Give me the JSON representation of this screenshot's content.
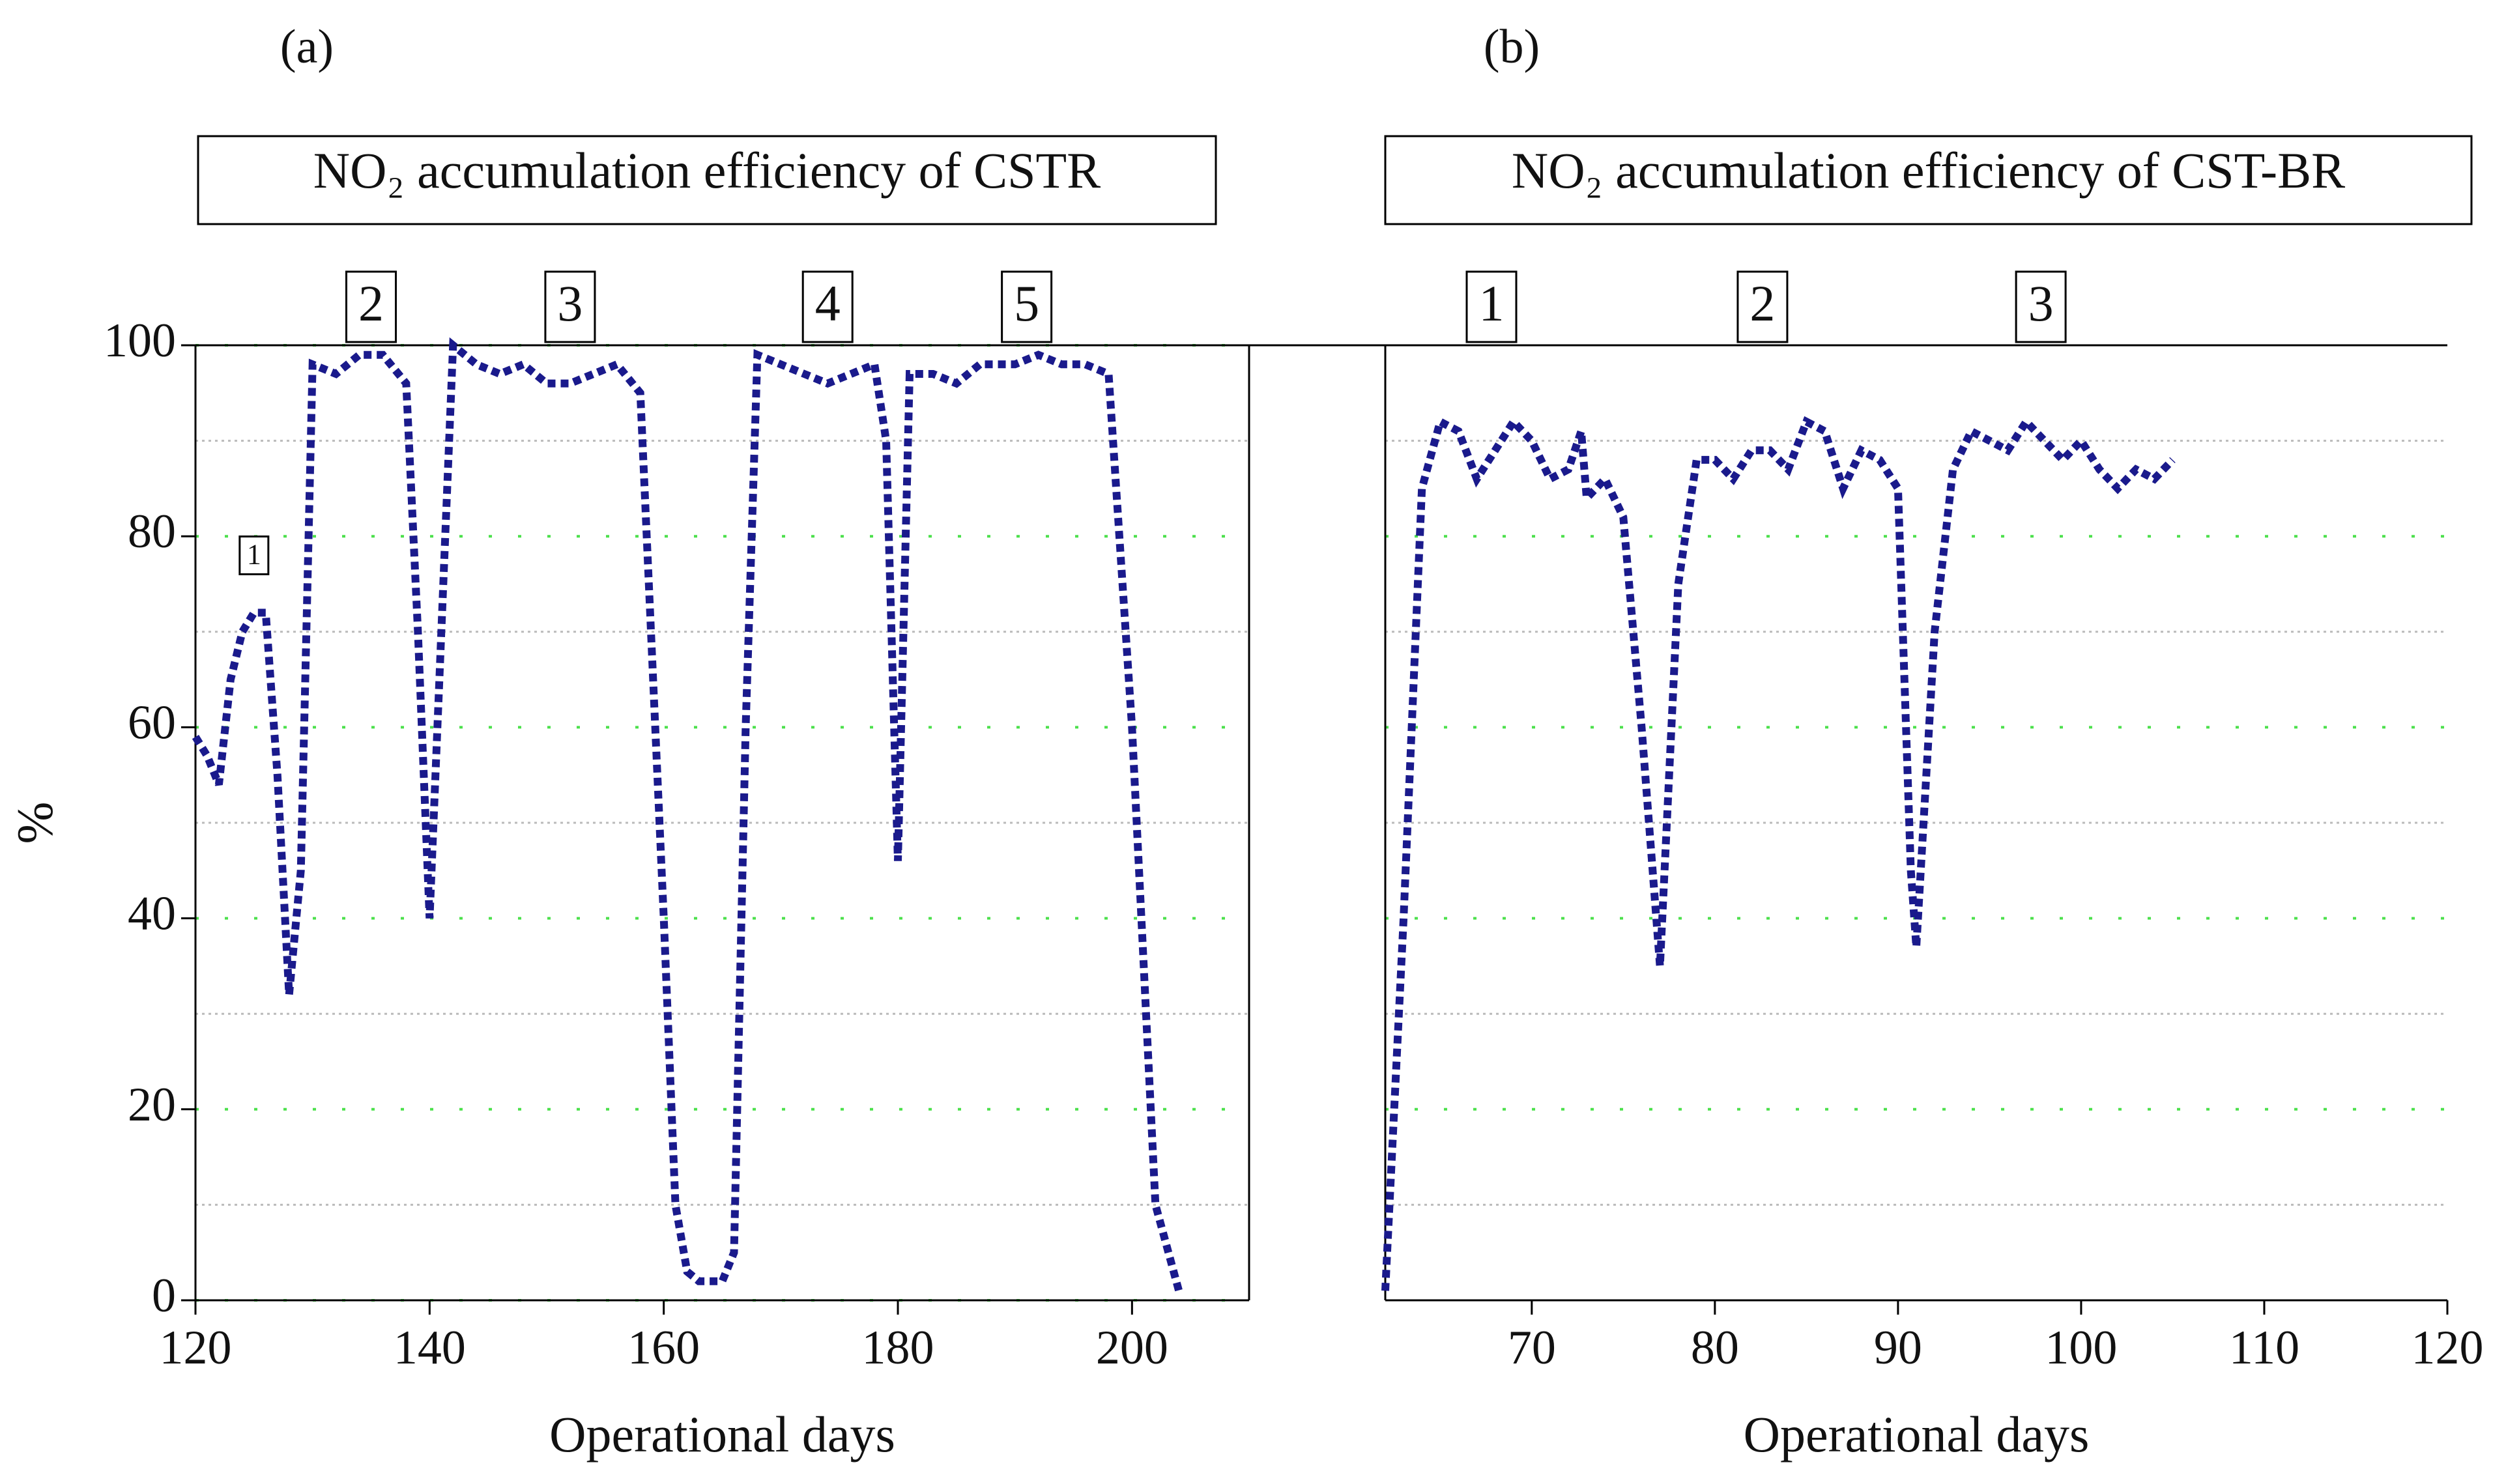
{
  "chart_data": [
    {
      "type": "line",
      "panel": "(a)",
      "title": "NO₂ accumulation efficiency of CSTR",
      "xlabel": "Operational days",
      "ylabel": "%",
      "x": [
        120,
        121,
        122,
        123,
        124,
        125,
        126,
        127,
        128,
        129,
        130,
        132,
        134,
        136,
        138,
        139,
        140,
        141,
        142,
        144,
        146,
        148,
        150,
        152,
        154,
        156,
        158,
        160,
        161,
        162,
        163,
        165,
        166,
        167,
        168,
        170,
        172,
        174,
        176,
        178,
        179,
        180,
        181,
        183,
        185,
        187,
        190,
        192,
        194,
        196,
        198,
        200,
        202,
        204
      ],
      "values": [
        59,
        57,
        54,
        65,
        70,
        72,
        72,
        55,
        32,
        45,
        98,
        97,
        99,
        99,
        96,
        70,
        40,
        70,
        100,
        98,
        97,
        98,
        96,
        96,
        97,
        98,
        95,
        40,
        10,
        3,
        2,
        2,
        5,
        60,
        99,
        98,
        97,
        96,
        97,
        98,
        90,
        46,
        97,
        97,
        96,
        98,
        98,
        99,
        98,
        98,
        97,
        60,
        10,
        1
      ],
      "color": "#1a1a8c",
      "xlim": [
        120,
        210
      ],
      "xticks": [
        120,
        140,
        160,
        180,
        200
      ],
      "ylim": [
        0,
        100
      ],
      "yticks": [
        0,
        20,
        40,
        60,
        80,
        100
      ],
      "ygrid_minor": [
        10,
        30,
        50,
        70,
        90
      ],
      "grid": true,
      "annotations": [
        {
          "text": "2",
          "x": 135
        },
        {
          "text": "3",
          "x": 152
        },
        {
          "text": "4",
          "x": 174
        },
        {
          "text": "5",
          "x": 191
        },
        {
          "text": "1",
          "x": 125,
          "y": 78
        }
      ]
    },
    {
      "type": "line",
      "panel": "(b)",
      "title": "NO₂ accumulation efficiency of CST-BR",
      "xlabel": "Operational days",
      "x": [
        62,
        63,
        64,
        65,
        66,
        67,
        68,
        69,
        70,
        71,
        72,
        72.7,
        73,
        74,
        75,
        76,
        77,
        78,
        79,
        80,
        81,
        82,
        83,
        84,
        85,
        86,
        87,
        88,
        89,
        90,
        90.7,
        91,
        92,
        93,
        94,
        95,
        96,
        97,
        98,
        99,
        100,
        101,
        102,
        103,
        104,
        105
      ],
      "values": [
        1,
        40,
        85,
        92,
        91,
        86,
        89,
        92,
        90,
        86,
        87,
        91,
        84,
        86,
        82,
        60,
        35,
        75,
        88,
        88,
        86,
        89,
        89,
        87,
        92,
        91,
        85,
        89,
        88,
        85,
        45,
        37,
        70,
        87,
        91,
        90,
        89,
        92,
        90,
        88,
        90,
        87,
        85,
        87,
        86,
        88
      ],
      "color": "#1a1a8c",
      "xlim": [
        62,
        120
      ],
      "xticks": [
        70,
        80,
        90,
        100,
        110,
        120
      ],
      "ylim": [
        0,
        100
      ],
      "ygrid": [
        20,
        40,
        60,
        80
      ],
      "ygrid_minor": [
        10,
        30,
        50,
        70,
        90
      ],
      "grid": true,
      "annotations": [
        {
          "text": "1",
          "x": 67.8
        },
        {
          "text": "2",
          "x": 82.6
        },
        {
          "text": "3",
          "x": 97.8
        }
      ]
    }
  ]
}
